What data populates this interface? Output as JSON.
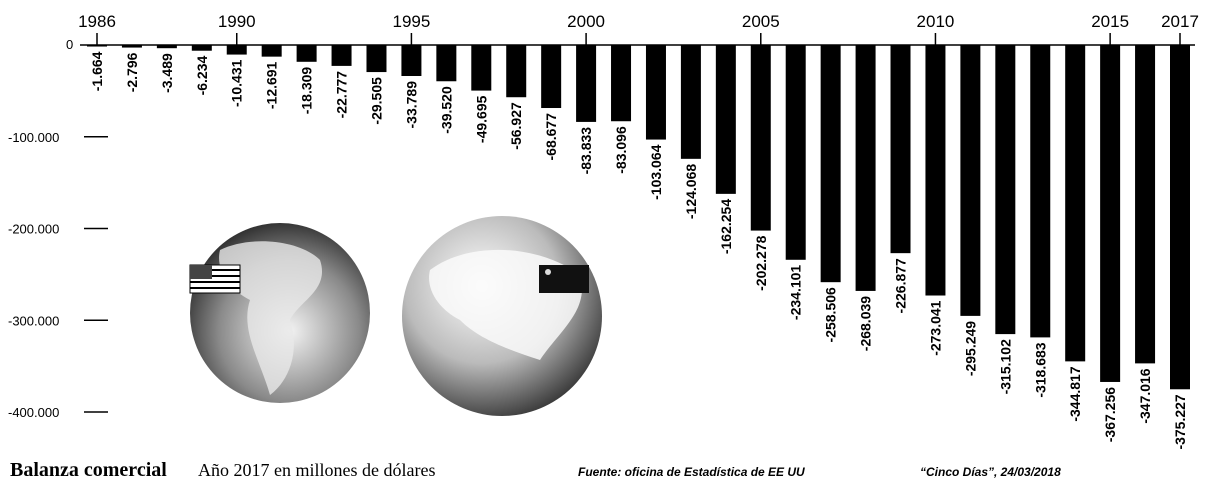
{
  "chart_data": {
    "type": "bar",
    "title": "Balanza comercial",
    "subtitle": "Año 2017 en millones de dólares",
    "source": "Fuente: oficina de Estadística de EE UU",
    "credit": "“Cinco Días”, 24/03/2018",
    "color": "#000000",
    "categories": [
      "1986",
      null,
      null,
      null,
      "1990",
      null,
      null,
      null,
      null,
      "1995",
      null,
      null,
      null,
      null,
      "2000",
      null,
      null,
      null,
      null,
      "2005",
      null,
      null,
      null,
      null,
      "2010",
      null,
      null,
      null,
      null,
      "2015",
      null,
      "2017"
    ],
    "values": [
      -1664,
      -2796,
      -3489,
      -6234,
      -10431,
      -12691,
      -18309,
      -22777,
      -29505,
      -33789,
      -39520,
      -49695,
      -56927,
      -68677,
      -83833,
      -83096,
      -103064,
      -124068,
      -162254,
      -202278,
      -234101,
      -258506,
      -268039,
      -226877,
      -273041,
      -295249,
      -315102,
      -318683,
      -344817,
      -367256,
      -347016,
      -375227
    ],
    "value_labels": [
      "-1.664",
      "-2.796",
      "-3.489",
      "-6.234",
      "-10.431",
      "-12.691",
      "-18.309",
      "-22.777",
      "-29.505",
      "-33.789",
      "-39.520",
      "-49.695",
      "-56.927",
      "-68.677",
      "-83.833",
      "-83.096",
      "-103.064",
      "-124.068",
      "-162.254",
      "-202.278",
      "-234.101",
      "-258.506",
      "-268.039",
      "-226.877",
      "-273.041",
      "-295.249",
      "-315.102",
      "-318.683",
      "-344.817",
      "-367.256",
      "-347.016",
      "-375.227"
    ],
    "ylim": [
      -400000,
      0
    ],
    "yticks": [
      0,
      {
        "value": -100000,
        "label": "-100.000"
      },
      {
        "value": -200000,
        "label": "-200.000"
      },
      {
        "value": -300000,
        "label": "-300.000"
      },
      {
        "value": -400000,
        "label": "-400.000"
      }
    ]
  }
}
